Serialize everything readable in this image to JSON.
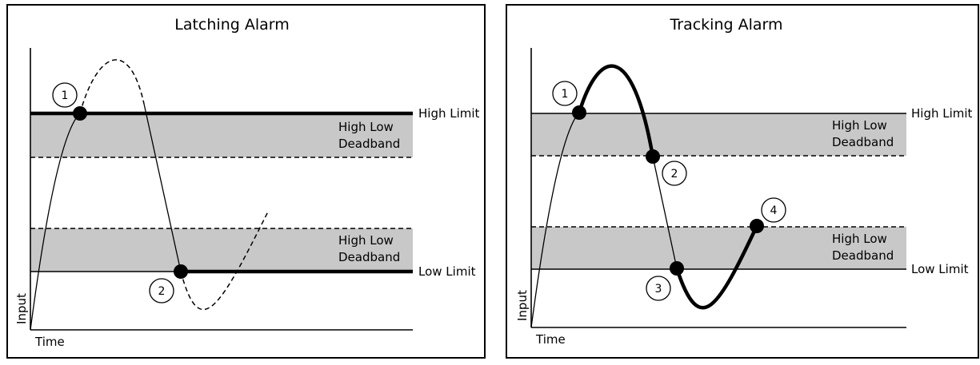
{
  "latching": {
    "title": "Latching Alarm",
    "high_limit": "High Limit",
    "low_limit": "Low Limit",
    "deadband_upper_1": "High Low",
    "deadband_upper_2": "Deadband",
    "deadband_lower_1": "High Low",
    "deadband_lower_2": "Deadband",
    "x_axis": "Time",
    "y_axis": "Input",
    "markers": [
      "1",
      "2"
    ]
  },
  "tracking": {
    "title": "Tracking Alarm",
    "high_limit": "High Limit",
    "low_limit": "Low Limit",
    "deadband_upper_1": "High Low",
    "deadband_upper_2": "Deadband",
    "deadband_lower_1": "High Low",
    "deadband_lower_2": "Deadband",
    "x_axis": "Time",
    "y_axis": "Input",
    "markers": [
      "1",
      "2",
      "3",
      "4"
    ]
  },
  "colors": {
    "deadband_fill": "#c8c8c8",
    "line": "#000000",
    "background": "#ffffff"
  }
}
